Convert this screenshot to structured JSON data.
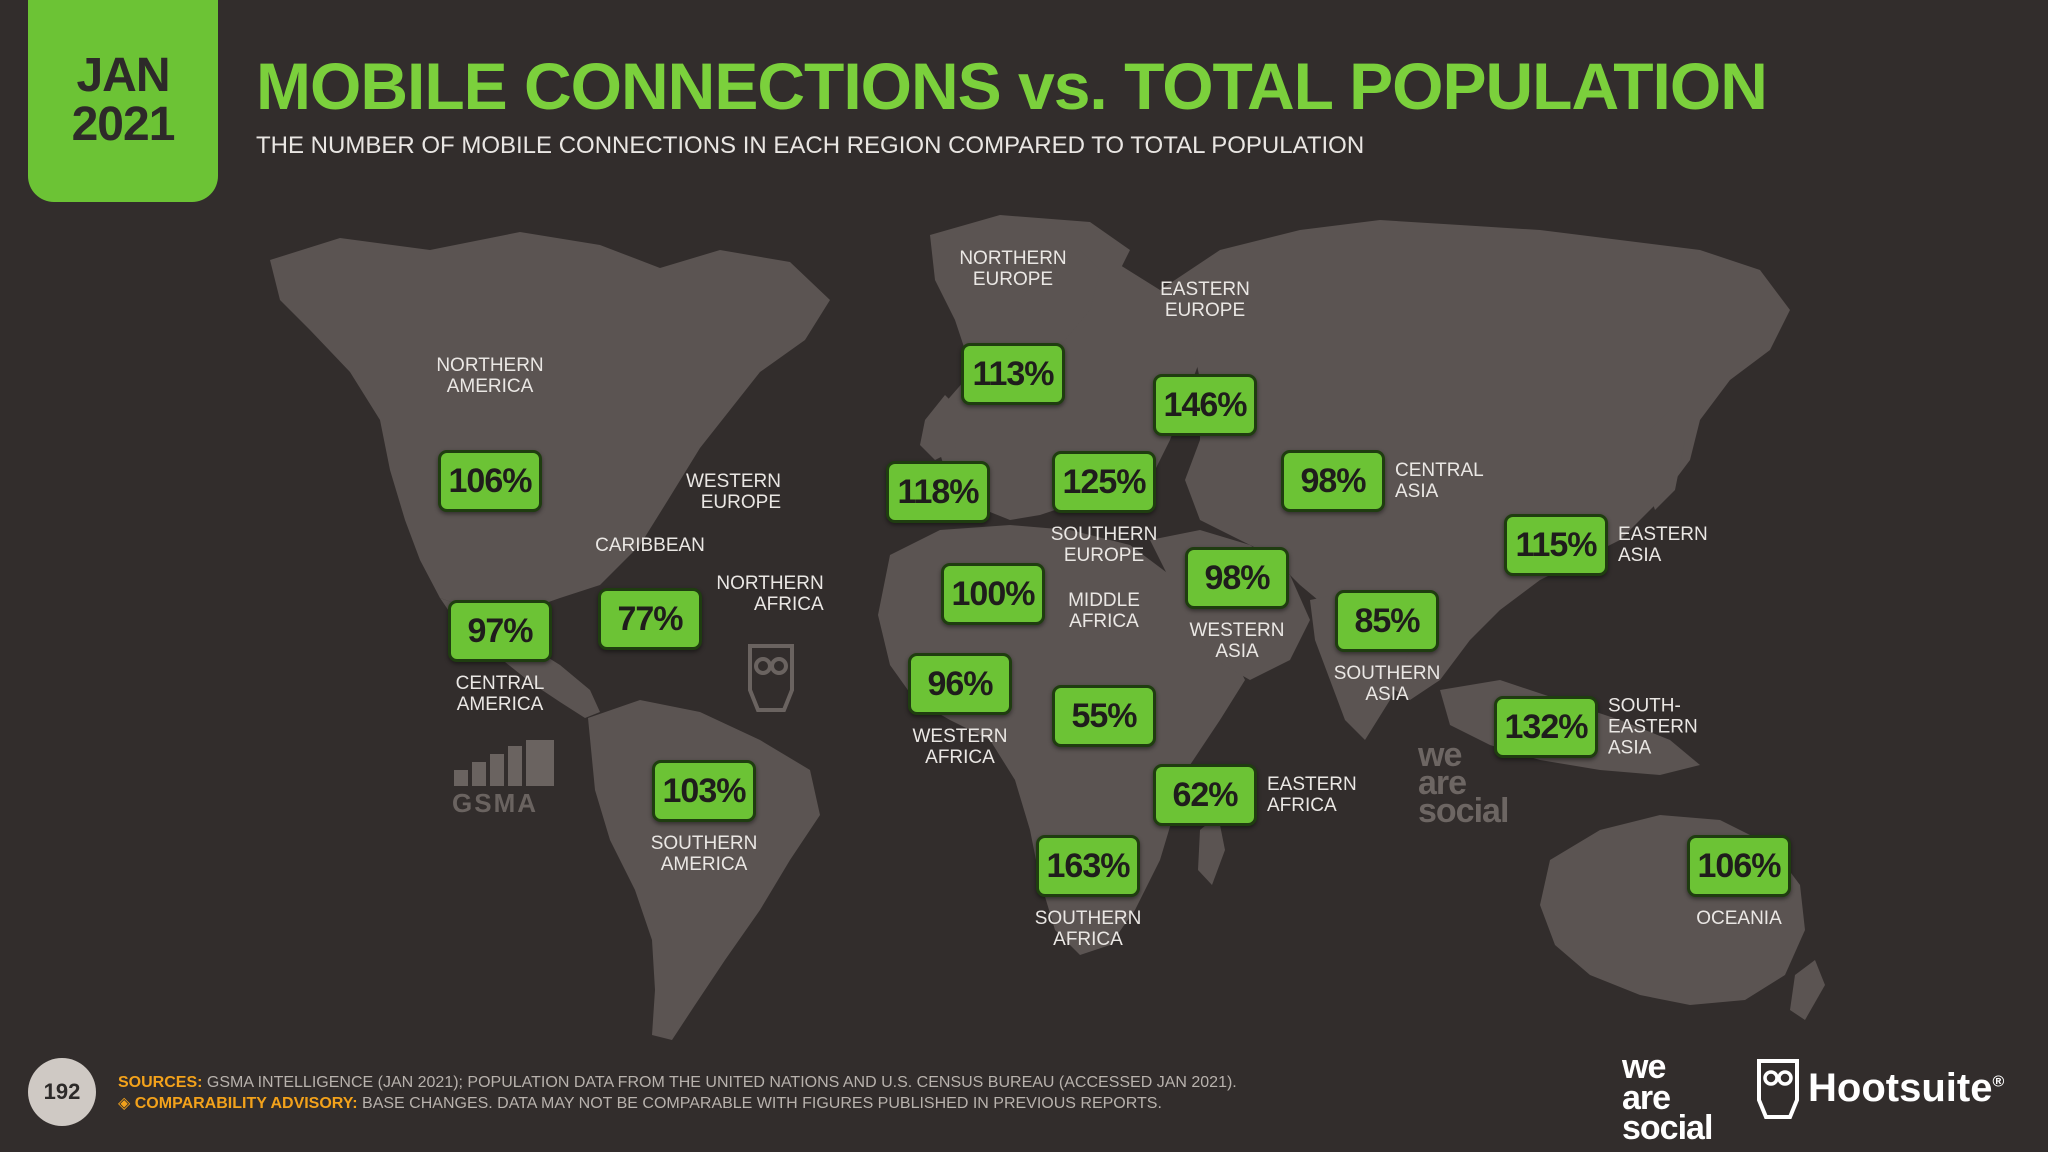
{
  "header": {
    "date_month": "JAN",
    "date_year": "2021",
    "title": "MOBILE CONNECTIONS vs. TOTAL POPULATION",
    "subtitle": "THE NUMBER OF MOBILE CONNECTIONS IN EACH REGION COMPARED TO TOTAL POPULATION"
  },
  "colors": {
    "background": "#322d2c",
    "land": "#5b5452",
    "accent_green": "#6cc335",
    "title_green": "#7bd03c",
    "sources_orange": "#f3a21b"
  },
  "regions": [
    {
      "key": "northern-america",
      "label": "NORTHERN\nAMERICA",
      "value": "106%"
    },
    {
      "key": "central-america",
      "label": "CENTRAL\nAMERICA",
      "value": "97%"
    },
    {
      "key": "caribbean",
      "label": "CARIBBEAN",
      "value": "77%"
    },
    {
      "key": "southern-america",
      "label": "SOUTHERN\nAMERICA",
      "value": "103%"
    },
    {
      "key": "northern-europe",
      "label": "NORTHERN\nEUROPE",
      "value": "113%"
    },
    {
      "key": "western-europe",
      "label": "WESTERN\nEUROPE",
      "value": "118%"
    },
    {
      "key": "southern-europe",
      "label": "SOUTHERN\nEUROPE",
      "value": "125%"
    },
    {
      "key": "eastern-europe",
      "label": "EASTERN\nEUROPE",
      "value": "146%"
    },
    {
      "key": "northern-africa",
      "label": "NORTHERN\nAFRICA",
      "value": "100%"
    },
    {
      "key": "western-africa",
      "label": "WESTERN\nAFRICA",
      "value": "96%"
    },
    {
      "key": "middle-africa",
      "label": "MIDDLE\nAFRICA",
      "value": "55%"
    },
    {
      "key": "eastern-africa",
      "label": "EASTERN\nAFRICA",
      "value": "62%"
    },
    {
      "key": "southern-africa",
      "label": "SOUTHERN\nAFRICA",
      "value": "163%"
    },
    {
      "key": "western-asia",
      "label": "WESTERN\nASIA",
      "value": "98%"
    },
    {
      "key": "central-asia",
      "label": "CENTRAL\nASIA",
      "value": "98%"
    },
    {
      "key": "southern-asia",
      "label": "SOUTHERN\nASIA",
      "value": "85%"
    },
    {
      "key": "eastern-asia",
      "label": "EASTERN\nASIA",
      "value": "115%"
    },
    {
      "key": "south-eastern-asia",
      "label": "SOUTH-EASTERN\nASIA",
      "value": "132%"
    },
    {
      "key": "oceania",
      "label": "OCEANIA",
      "value": "106%"
    }
  ],
  "watermarks": {
    "gsma": "GSMA",
    "we_are_social": [
      "we",
      "are",
      "social"
    ]
  },
  "footer": {
    "page_number": "192",
    "sources_label": "SOURCES:",
    "sources_text": "GSMA INTELLIGENCE (JAN 2021); POPULATION DATA FROM THE UNITED NATIONS AND U.S. CENSUS BUREAU (ACCESSED JAN 2021).",
    "advisory_label": "◈ COMPARABILITY ADVISORY:",
    "advisory_text": "BASE CHANGES. DATA MAY NOT BE COMPARABLE WITH FIGURES PUBLISHED IN PREVIOUS REPORTS.",
    "brand_was": [
      "we",
      "are",
      "social"
    ],
    "brand_hootsuite": "Hootsuite",
    "brand_hootsuite_mark": "®"
  }
}
